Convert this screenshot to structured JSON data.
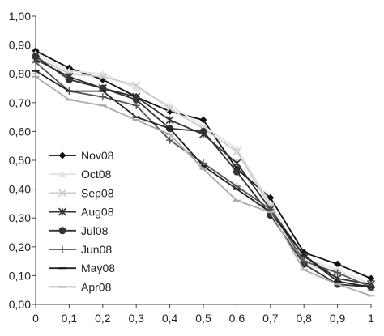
{
  "chart_data": {
    "type": "line",
    "title": "",
    "xlabel": "",
    "ylabel": "",
    "x": [
      0,
      0.1,
      0.2,
      0.3,
      0.4,
      0.5,
      0.6,
      0.7,
      0.8,
      0.9,
      1
    ],
    "x_tick_labels": [
      "0",
      "0,1",
      "0,2",
      "0,3",
      "0,4",
      "0,5",
      "0,6",
      "0,7",
      "0,8",
      "0,9",
      "1"
    ],
    "y_ticks": [
      0,
      0.1,
      0.2,
      0.3,
      0.4,
      0.5,
      0.6,
      0.7,
      0.8,
      0.9,
      1.0
    ],
    "y_tick_labels": [
      "0,00",
      "0,10",
      "0,20",
      "0,30",
      "0,40",
      "0,50",
      "0,60",
      "0,70",
      "0,80",
      "0,90",
      "1,00"
    ],
    "xlim": [
      0,
      1
    ],
    "ylim": [
      0,
      1
    ],
    "grid": false,
    "legend": "left",
    "series": [
      {
        "name": "Nov08",
        "color": "#111111",
        "marker": "diamond",
        "values": [
          0.88,
          0.82,
          0.78,
          0.72,
          0.67,
          0.64,
          0.47,
          0.37,
          0.18,
          0.14,
          0.09
        ]
      },
      {
        "name": "Oct08",
        "color": "#e2e2e2",
        "marker": "triangle",
        "values": [
          0.87,
          0.81,
          0.8,
          0.75,
          0.69,
          0.62,
          0.54,
          0.35,
          0.16,
          0.12,
          0.07
        ]
      },
      {
        "name": "Sep08",
        "color": "#cccccc",
        "marker": "x",
        "values": [
          0.86,
          0.8,
          0.79,
          0.76,
          0.68,
          0.61,
          0.53,
          0.34,
          0.14,
          0.11,
          0.06
        ]
      },
      {
        "name": "Aug08",
        "color": "#333333",
        "marker": "asterisk",
        "values": [
          0.85,
          0.79,
          0.75,
          0.72,
          0.64,
          0.59,
          0.49,
          0.33,
          0.17,
          0.09,
          0.07
        ]
      },
      {
        "name": "Jul08",
        "color": "#333333",
        "marker": "circle",
        "values": [
          0.86,
          0.78,
          0.75,
          0.71,
          0.61,
          0.6,
          0.46,
          0.31,
          0.14,
          0.07,
          0.06
        ]
      },
      {
        "name": "Jun08",
        "color": "#555555",
        "marker": "plus",
        "values": [
          0.84,
          0.74,
          0.72,
          0.69,
          0.57,
          0.49,
          0.41,
          0.33,
          0.15,
          0.11,
          0.06
        ]
      },
      {
        "name": "May08",
        "color": "#222222",
        "marker": "dash",
        "values": [
          0.81,
          0.74,
          0.74,
          0.65,
          0.61,
          0.48,
          0.4,
          0.32,
          0.17,
          0.08,
          0.06
        ]
      },
      {
        "name": "Apr08",
        "color": "#aaaaaa",
        "marker": "dash",
        "values": [
          0.79,
          0.71,
          0.69,
          0.64,
          0.59,
          0.47,
          0.36,
          0.32,
          0.12,
          0.07,
          0.03
        ]
      }
    ]
  }
}
